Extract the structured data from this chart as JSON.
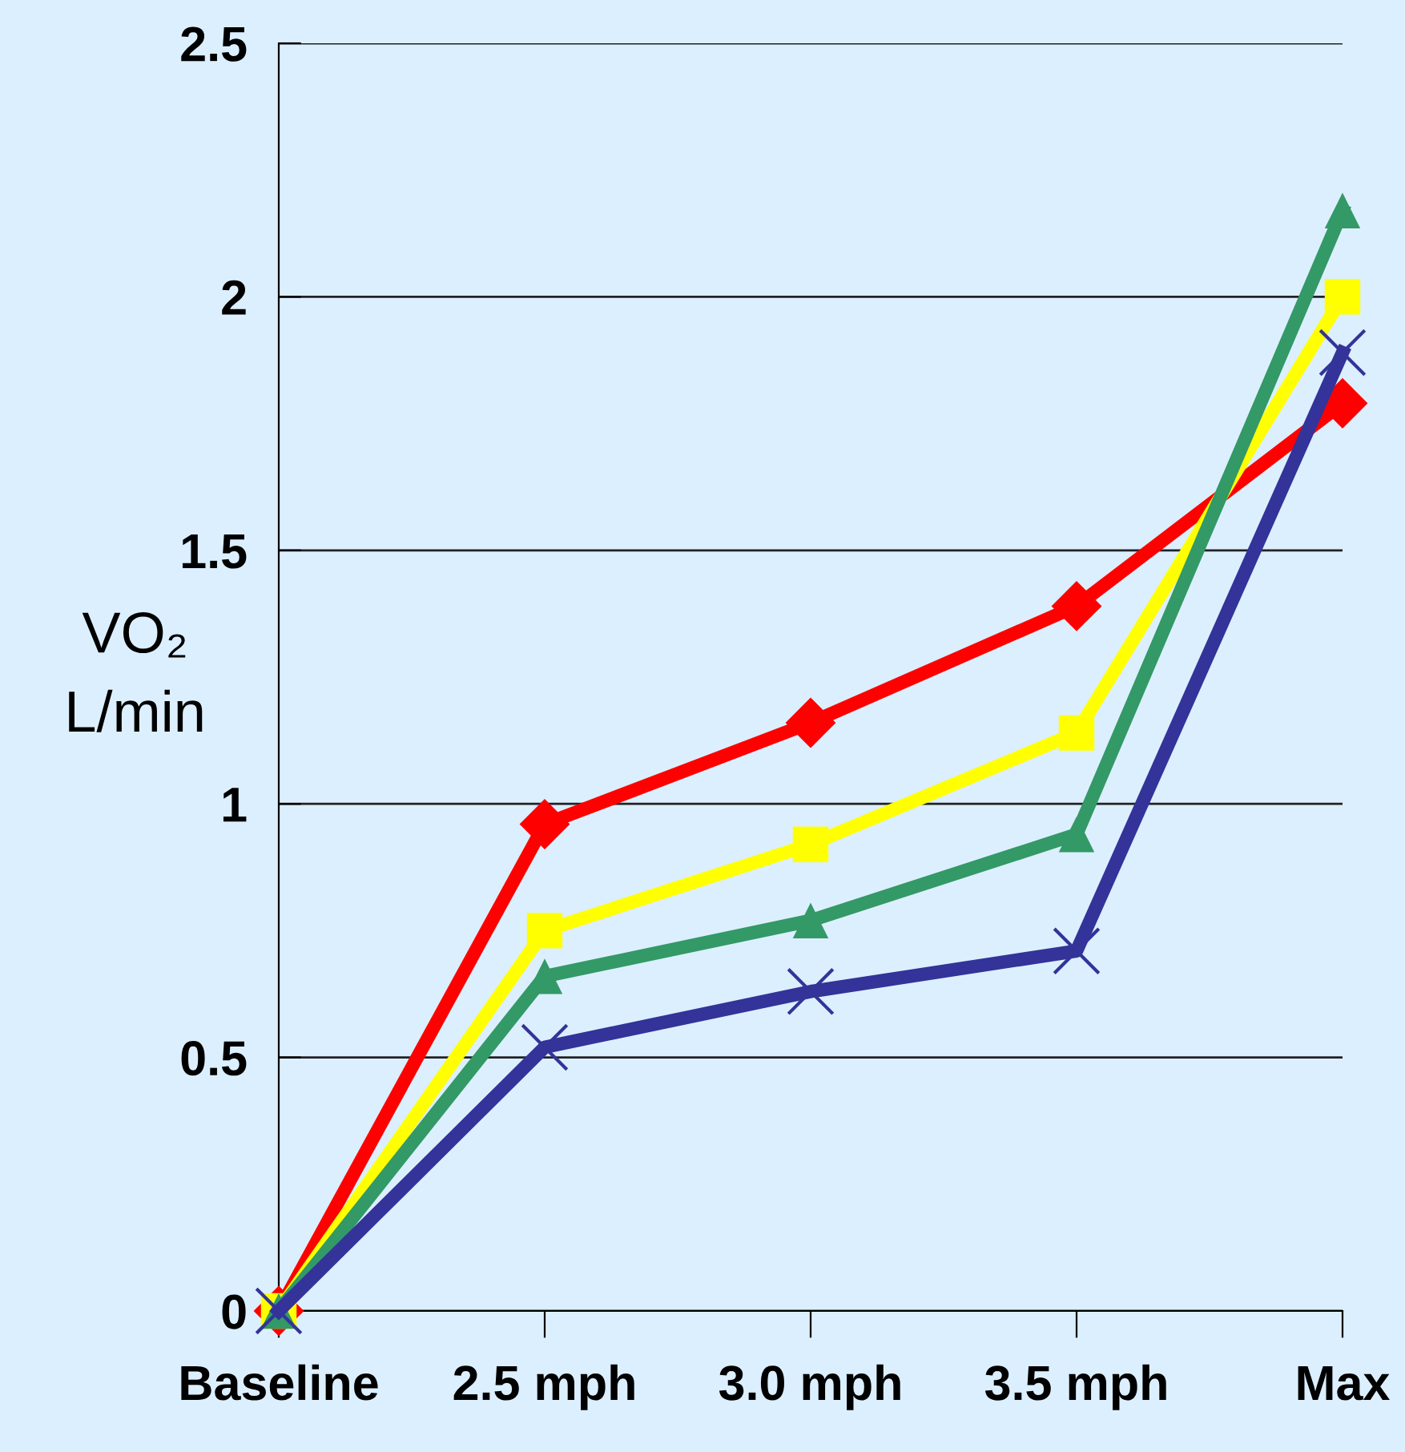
{
  "chart_data": {
    "type": "line",
    "ylabel": "VO₂\nL/min",
    "categories": [
      "Baseline",
      "2.5 mph",
      "3.0 mph",
      "3.5 mph",
      "Max"
    ],
    "series": [
      {
        "color": "#ff0000",
        "marker": "diamond",
        "values": [
          0,
          0.96,
          1.16,
          1.39,
          1.79
        ]
      },
      {
        "color": "#ffff00",
        "marker": "square",
        "values": [
          0,
          0.75,
          0.92,
          1.14,
          2.0
        ]
      },
      {
        "color": "#339966",
        "marker": "triangle",
        "values": [
          0,
          0.66,
          0.77,
          0.94,
          2.17
        ]
      },
      {
        "color": "#333399",
        "marker": "cross",
        "values": [
          0,
          0.52,
          0.63,
          0.71,
          1.89
        ]
      }
    ],
    "ylim": [
      0,
      2.5
    ],
    "yticks": [
      0,
      0.5,
      1,
      1.5,
      2,
      2.5
    ],
    "grid": "y",
    "line_style": "solid"
  }
}
